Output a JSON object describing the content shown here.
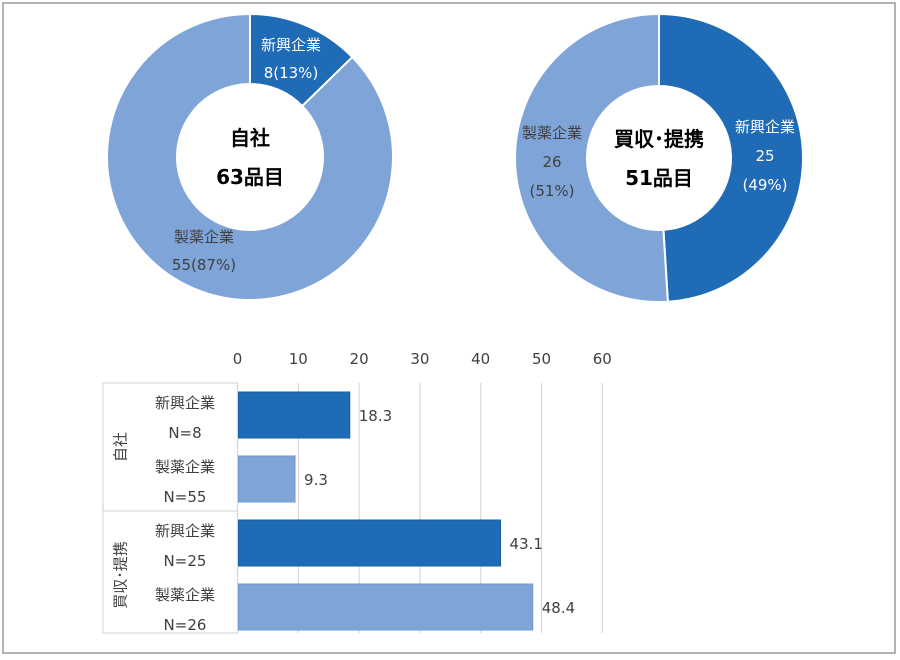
{
  "colors": {
    "startup": "#1f6bb5",
    "pharma": "#7fa5d8",
    "grid": "#d9d9d9",
    "frame": "#b3b3b3"
  },
  "chart_data": [
    {
      "type": "pie",
      "variant": "donut",
      "title": "自社",
      "center_label": [
        "自社",
        "63品目"
      ],
      "total": 63,
      "slices": [
        {
          "name": "新興企業",
          "value": 8,
          "percent": 13,
          "label": [
            "新興企業",
            "8(13%)"
          ]
        },
        {
          "name": "製薬企業",
          "value": 55,
          "percent": 87,
          "label": [
            "製薬企業",
            "55(87%)"
          ]
        }
      ]
    },
    {
      "type": "pie",
      "variant": "donut",
      "title": "買収・提携",
      "center_label": [
        "買収･提携",
        "51品目"
      ],
      "total": 51,
      "slices": [
        {
          "name": "新興企業",
          "value": 25,
          "percent": 49,
          "label": [
            "新興企業",
            "25",
            "(49%)"
          ]
        },
        {
          "name": "製薬企業",
          "value": 26,
          "percent": 51,
          "label": [
            "製薬企業",
            "26",
            "(51%)"
          ]
        }
      ]
    },
    {
      "type": "bar",
      "orientation": "horizontal",
      "xlim": [
        0,
        60
      ],
      "xticks": [
        0,
        10,
        20,
        30,
        40,
        50,
        60
      ],
      "grid": true,
      "groups": [
        {
          "name": "自社",
          "categories": [
            {
              "label": [
                "新興企業",
                "N=8"
              ],
              "value": 18.3,
              "series": "新興企業"
            },
            {
              "label": [
                "製薬企業",
                "N=55"
              ],
              "value": 9.3,
              "series": "製薬企業"
            }
          ]
        },
        {
          "name": "買収･提携",
          "categories": [
            {
              "label": [
                "新興企業",
                "N=25"
              ],
              "value": 43.1,
              "series": "新興企業"
            },
            {
              "label": [
                "製薬企業",
                "N=26"
              ],
              "value": 48.4,
              "series": "製薬企業"
            }
          ]
        }
      ],
      "categories": [
        "自社 新興企業 N=8",
        "自社 製薬企業 N=55",
        "買収･提携 新興企業 N=25",
        "買収･提携 製薬企業 N=26"
      ],
      "values": [
        18.3,
        9.3,
        43.1,
        48.4
      ]
    }
  ]
}
